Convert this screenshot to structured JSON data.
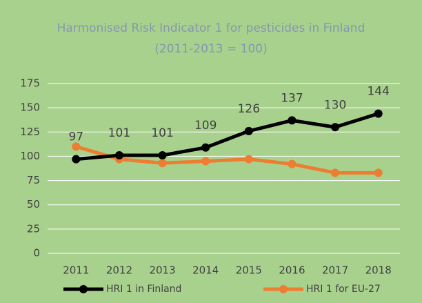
{
  "chart_data": {
    "type": "line",
    "title": "Harmonised Risk Indicator 1 for pesticides in Finland",
    "subtitle": "(2011-2013 = 100)",
    "categories": [
      "2011",
      "2012",
      "2013",
      "2014",
      "2015",
      "2016",
      "2017",
      "2018"
    ],
    "series": [
      {
        "name": "HRI 1 in Finland",
        "color": "#000000",
        "values": [
          97,
          101,
          101,
          109,
          126,
          137,
          130,
          144
        ],
        "data_labels": true
      },
      {
        "name": "HRI 1 for EU-27",
        "color": "#ed7d31",
        "values": [
          110,
          97,
          93,
          95,
          97,
          92,
          83,
          83
        ],
        "data_labels": false
      }
    ],
    "ylim": [
      0,
      175
    ],
    "yticks": [
      0,
      25,
      50,
      75,
      100,
      125,
      150,
      175
    ],
    "grid": true,
    "legend": "bottom"
  }
}
